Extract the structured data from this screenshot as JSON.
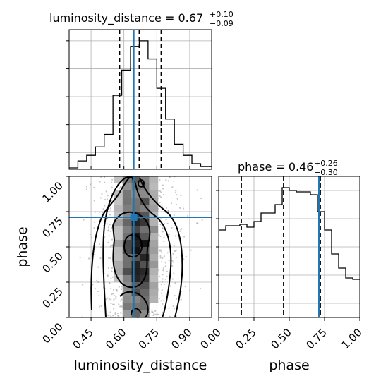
{
  "chart_data": [
    {
      "type": "histogram",
      "panel": "top-left",
      "title": "luminosity_distance = 0.67",
      "title_sup": "+0.10",
      "title_sub": "−0.09",
      "xlim": [
        0.35,
        1.0
      ],
      "bin_edges": [
        0.35,
        0.39,
        0.43,
        0.47,
        0.51,
        0.55,
        0.59,
        0.63,
        0.67,
        0.71,
        0.75,
        0.79,
        0.83,
        0.87,
        0.91,
        0.95,
        1.0
      ],
      "counts": [
        1,
        6,
        10,
        16,
        25,
        53,
        71,
        88,
        92,
        79,
        58,
        36,
        18,
        10,
        4,
        2
      ],
      "ylim": [
        0,
        100
      ],
      "yticks": [
        12,
        32,
        52,
        72,
        92
      ],
      "quantile_lines": [
        0.58,
        0.67,
        0.77
      ],
      "truth": 0.645,
      "xticks": [
        0.45,
        0.6,
        0.75,
        0.9
      ],
      "grid": true
    },
    {
      "type": "scatter-density-contour",
      "panel": "bottom-left",
      "xlabel": "luminosity_distance",
      "ylabel": "phase",
      "xlim": [
        0.35,
        1.0
      ],
      "ylim": [
        0.0,
        1.0
      ],
      "xticks": [
        "0.45",
        "0.60",
        "0.75",
        "0.90"
      ],
      "yticks": [
        "0.00",
        "0.25",
        "0.50",
        "0.75",
        "1.00"
      ],
      "truth": [
        0.645,
        0.71
      ],
      "grid": true
    },
    {
      "type": "histogram",
      "panel": "bottom-right",
      "title": "phase = 0.46",
      "title_sup": "+0.26",
      "title_sub": "−0.30",
      "xlabel": "phase",
      "xlim": [
        0.0,
        1.0
      ],
      "bin_edges": [
        0.0,
        0.05,
        0.1,
        0.15,
        0.2,
        0.25,
        0.3,
        0.35,
        0.4,
        0.45,
        0.5,
        0.55,
        0.6,
        0.65,
        0.7,
        0.75,
        0.8,
        0.85,
        0.9,
        0.95,
        1.0
      ],
      "counts": [
        62,
        65,
        65,
        66,
        64,
        68,
        74,
        74,
        80,
        92,
        90,
        89,
        89,
        87,
        75,
        62,
        45,
        35,
        28,
        27
      ],
      "ylim": [
        0,
        100
      ],
      "yticks": [
        10,
        30,
        50,
        70,
        90
      ],
      "quantile_lines": [
        0.16,
        0.46,
        0.72
      ],
      "truth": 0.71,
      "xticks": [
        "0.00",
        "0.25",
        "0.50",
        "0.75",
        "1.00"
      ],
      "grid": true
    }
  ],
  "colors": {
    "truth": "#1f77b4",
    "hist": "#000000",
    "grid": "#b0b0b0",
    "density": "#000000"
  }
}
